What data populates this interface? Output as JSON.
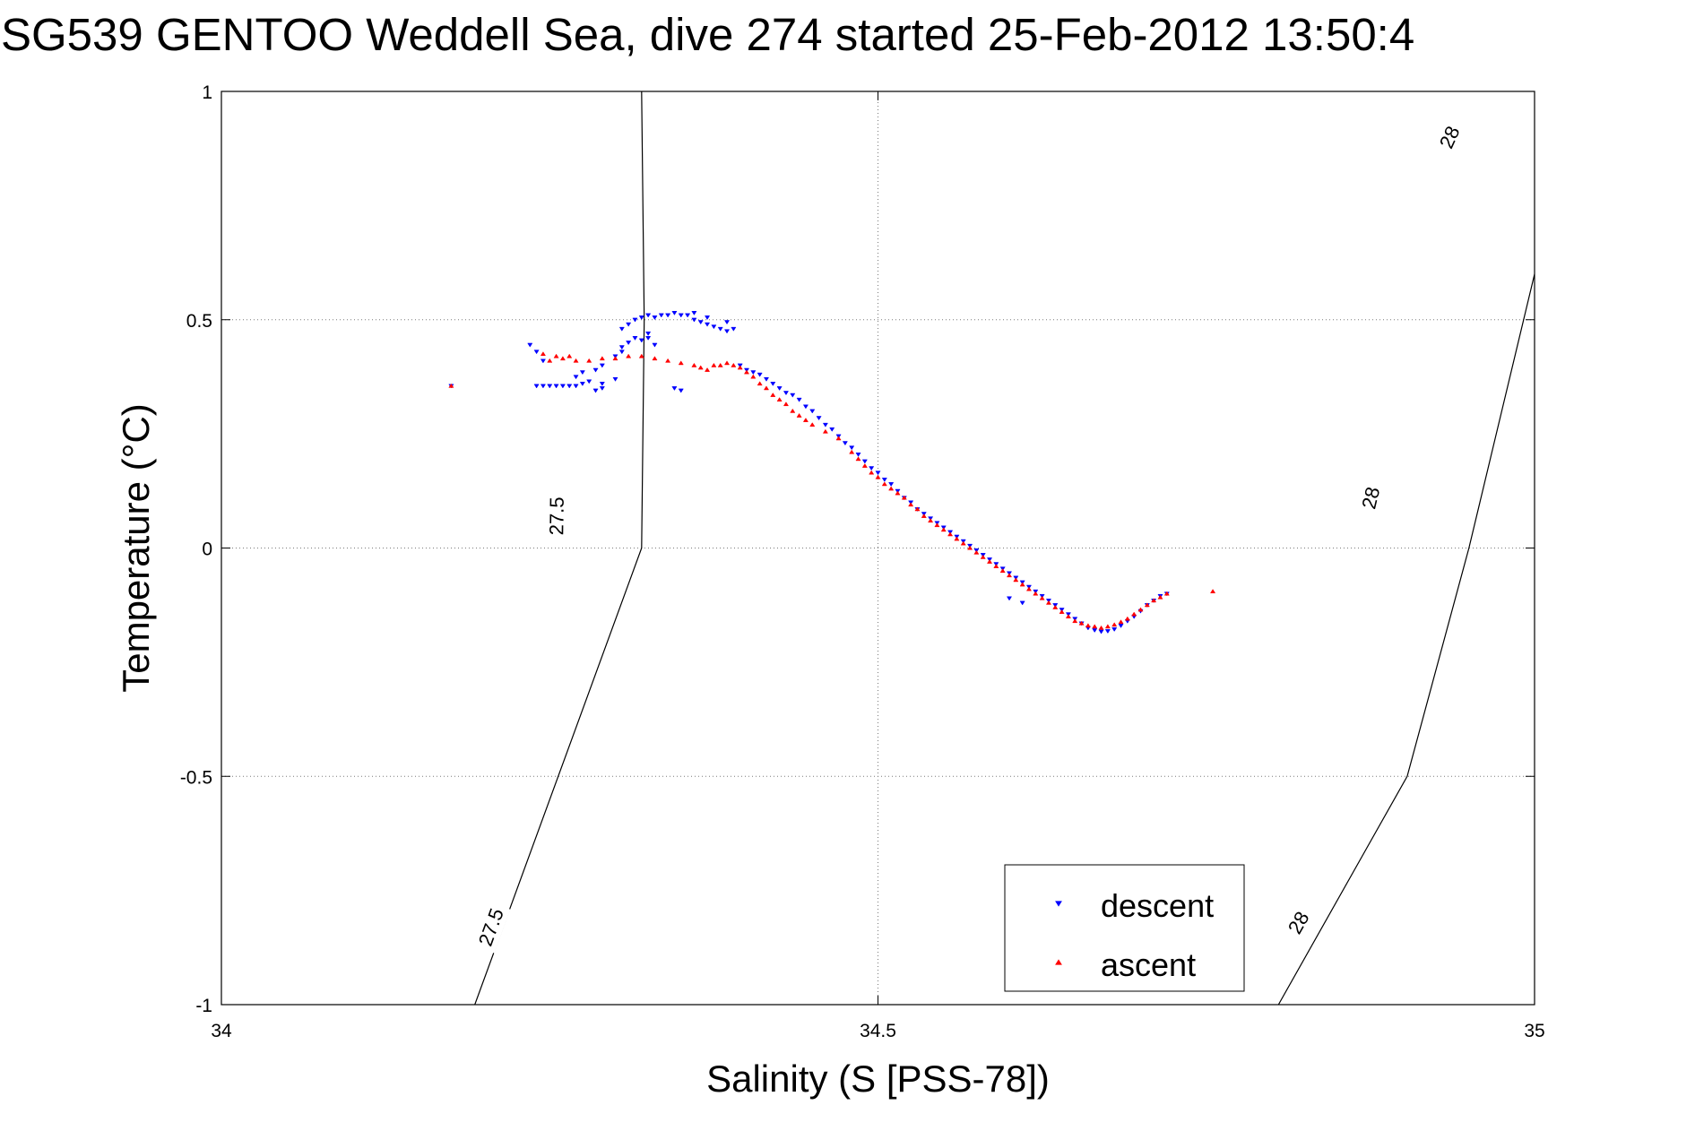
{
  "chart_data": {
    "type": "scatter",
    "title": "SG539 GENTOO Weddell Sea, dive 274 started 25-Feb-2012 13:50:4",
    "xlabel": "Salinity (S [PSS-78])",
    "ylabel": "Temperature (°C)",
    "xlim": [
      34,
      35
    ],
    "ylim": [
      -1,
      1
    ],
    "x_ticks": [
      34,
      34.5,
      35
    ],
    "x_tick_labels": [
      "34",
      "34.5",
      "35"
    ],
    "y_ticks": [
      -1,
      -0.5,
      0,
      0.5,
      1
    ],
    "y_tick_labels": [
      "-1",
      "-0.5",
      "0",
      "0.5",
      "1"
    ],
    "grid": true,
    "legend_position": "bottom-right",
    "series": [
      {
        "name": "descent",
        "color": "#0000ff",
        "marker": "triangle-down",
        "points": [
          [
            34.175,
            0.355
          ],
          [
            34.235,
            0.445
          ],
          [
            34.24,
            0.43
          ],
          [
            34.245,
            0.41
          ],
          [
            34.24,
            0.355
          ],
          [
            34.245,
            0.355
          ],
          [
            34.25,
            0.355
          ],
          [
            34.255,
            0.355
          ],
          [
            34.26,
            0.355
          ],
          [
            34.265,
            0.355
          ],
          [
            34.27,
            0.355
          ],
          [
            34.28,
            0.365
          ],
          [
            34.27,
            0.375
          ],
          [
            34.275,
            0.36
          ],
          [
            34.29,
            0.36
          ],
          [
            34.285,
            0.345
          ],
          [
            34.275,
            0.385
          ],
          [
            34.285,
            0.39
          ],
          [
            34.29,
            0.4
          ],
          [
            34.3,
            0.42
          ],
          [
            34.305,
            0.43
          ],
          [
            34.29,
            0.35
          ],
          [
            34.3,
            0.37
          ],
          [
            34.305,
            0.44
          ],
          [
            34.31,
            0.45
          ],
          [
            34.315,
            0.46
          ],
          [
            34.32,
            0.455
          ],
          [
            34.325,
            0.46
          ],
          [
            34.33,
            0.445
          ],
          [
            34.325,
            0.47
          ],
          [
            34.305,
            0.48
          ],
          [
            34.31,
            0.49
          ],
          [
            34.315,
            0.5
          ],
          [
            34.32,
            0.505
          ],
          [
            34.325,
            0.51
          ],
          [
            34.33,
            0.505
          ],
          [
            34.335,
            0.51
          ],
          [
            34.34,
            0.51
          ],
          [
            34.345,
            0.515
          ],
          [
            34.35,
            0.51
          ],
          [
            34.355,
            0.51
          ],
          [
            34.36,
            0.515
          ],
          [
            34.36,
            0.5
          ],
          [
            34.365,
            0.495
          ],
          [
            34.37,
            0.49
          ],
          [
            34.375,
            0.485
          ],
          [
            34.38,
            0.48
          ],
          [
            34.385,
            0.475
          ],
          [
            34.39,
            0.48
          ],
          [
            34.385,
            0.495
          ],
          [
            34.37,
            0.505
          ],
          [
            34.345,
            0.35
          ],
          [
            34.35,
            0.345
          ],
          [
            34.395,
            0.4
          ],
          [
            34.4,
            0.39
          ],
          [
            34.405,
            0.385
          ],
          [
            34.41,
            0.38
          ],
          [
            34.415,
            0.37
          ],
          [
            34.42,
            0.36
          ],
          [
            34.425,
            0.35
          ],
          [
            34.43,
            0.34
          ],
          [
            34.435,
            0.335
          ],
          [
            34.44,
            0.325
          ],
          [
            34.445,
            0.31
          ],
          [
            34.45,
            0.3
          ],
          [
            34.455,
            0.285
          ],
          [
            34.46,
            0.27
          ],
          [
            34.465,
            0.26
          ],
          [
            34.47,
            0.245
          ],
          [
            34.475,
            0.23
          ],
          [
            34.48,
            0.22
          ],
          [
            34.485,
            0.205
          ],
          [
            34.49,
            0.19
          ],
          [
            34.495,
            0.175
          ],
          [
            34.5,
            0.165
          ],
          [
            34.505,
            0.15
          ],
          [
            34.51,
            0.14
          ],
          [
            34.515,
            0.125
          ],
          [
            34.52,
            0.11
          ],
          [
            34.525,
            0.1
          ],
          [
            34.53,
            0.085
          ],
          [
            34.535,
            0.075
          ],
          [
            34.54,
            0.065
          ],
          [
            34.545,
            0.055
          ],
          [
            34.55,
            0.045
          ],
          [
            34.555,
            0.035
          ],
          [
            34.56,
            0.025
          ],
          [
            34.565,
            0.015
          ],
          [
            34.57,
            0.005
          ],
          [
            34.575,
            -0.005
          ],
          [
            34.58,
            -0.015
          ],
          [
            34.585,
            -0.025
          ],
          [
            34.59,
            -0.035
          ],
          [
            34.595,
            -0.045
          ],
          [
            34.6,
            -0.055
          ],
          [
            34.605,
            -0.065
          ],
          [
            34.61,
            -0.075
          ],
          [
            34.615,
            -0.085
          ],
          [
            34.62,
            -0.095
          ],
          [
            34.625,
            -0.105
          ],
          [
            34.63,
            -0.115
          ],
          [
            34.635,
            -0.125
          ],
          [
            34.64,
            -0.135
          ],
          [
            34.645,
            -0.145
          ],
          [
            34.65,
            -0.155
          ],
          [
            34.655,
            -0.165
          ],
          [
            34.66,
            -0.175
          ],
          [
            34.665,
            -0.18
          ],
          [
            34.67,
            -0.183
          ],
          [
            34.675,
            -0.182
          ],
          [
            34.68,
            -0.178
          ],
          [
            34.685,
            -0.17
          ],
          [
            34.69,
            -0.16
          ],
          [
            34.695,
            -0.15
          ],
          [
            34.7,
            -0.138
          ],
          [
            34.705,
            -0.125
          ],
          [
            34.71,
            -0.115
          ],
          [
            34.715,
            -0.105
          ],
          [
            34.72,
            -0.1
          ],
          [
            34.6,
            -0.11
          ],
          [
            34.61,
            -0.12
          ]
        ]
      },
      {
        "name": "ascent",
        "color": "#ff0000",
        "marker": "triangle-up",
        "points": [
          [
            34.175,
            0.355
          ],
          [
            34.245,
            0.425
          ],
          [
            34.25,
            0.41
          ],
          [
            34.255,
            0.42
          ],
          [
            34.26,
            0.415
          ],
          [
            34.265,
            0.42
          ],
          [
            34.27,
            0.41
          ],
          [
            34.28,
            0.41
          ],
          [
            34.29,
            0.415
          ],
          [
            34.3,
            0.415
          ],
          [
            34.31,
            0.42
          ],
          [
            34.32,
            0.42
          ],
          [
            34.33,
            0.415
          ],
          [
            34.34,
            0.41
          ],
          [
            34.35,
            0.405
          ],
          [
            34.36,
            0.4
          ],
          [
            34.365,
            0.395
          ],
          [
            34.37,
            0.39
          ],
          [
            34.375,
            0.4
          ],
          [
            34.38,
            0.4
          ],
          [
            34.385,
            0.405
          ],
          [
            34.39,
            0.4
          ],
          [
            34.395,
            0.395
          ],
          [
            34.4,
            0.385
          ],
          [
            34.405,
            0.375
          ],
          [
            34.41,
            0.36
          ],
          [
            34.415,
            0.35
          ],
          [
            34.42,
            0.335
          ],
          [
            34.425,
            0.325
          ],
          [
            34.43,
            0.315
          ],
          [
            34.435,
            0.3
          ],
          [
            34.44,
            0.29
          ],
          [
            34.445,
            0.28
          ],
          [
            34.45,
            0.27
          ],
          [
            34.46,
            0.255
          ],
          [
            34.47,
            0.24
          ],
          [
            34.48,
            0.21
          ],
          [
            34.485,
            0.195
          ],
          [
            34.49,
            0.18
          ],
          [
            34.495,
            0.165
          ],
          [
            34.5,
            0.155
          ],
          [
            34.505,
            0.14
          ],
          [
            34.51,
            0.13
          ],
          [
            34.515,
            0.12
          ],
          [
            34.52,
            0.11
          ],
          [
            34.525,
            0.095
          ],
          [
            34.53,
            0.085
          ],
          [
            34.535,
            0.07
          ],
          [
            34.54,
            0.06
          ],
          [
            34.545,
            0.05
          ],
          [
            34.55,
            0.04
          ],
          [
            34.555,
            0.03
          ],
          [
            34.56,
            0.02
          ],
          [
            34.565,
            0.01
          ],
          [
            34.57,
            0.0
          ],
          [
            34.575,
            -0.01
          ],
          [
            34.58,
            -0.02
          ],
          [
            34.585,
            -0.03
          ],
          [
            34.59,
            -0.04
          ],
          [
            34.595,
            -0.05
          ],
          [
            34.6,
            -0.06
          ],
          [
            34.605,
            -0.07
          ],
          [
            34.61,
            -0.08
          ],
          [
            34.615,
            -0.09
          ],
          [
            34.62,
            -0.1
          ],
          [
            34.625,
            -0.11
          ],
          [
            34.63,
            -0.12
          ],
          [
            34.635,
            -0.13
          ],
          [
            34.64,
            -0.14
          ],
          [
            34.645,
            -0.15
          ],
          [
            34.65,
            -0.16
          ],
          [
            34.655,
            -0.165
          ],
          [
            34.66,
            -0.17
          ],
          [
            34.665,
            -0.172
          ],
          [
            34.67,
            -0.175
          ],
          [
            34.675,
            -0.172
          ],
          [
            34.68,
            -0.168
          ],
          [
            34.685,
            -0.162
          ],
          [
            34.69,
            -0.155
          ],
          [
            34.695,
            -0.145
          ],
          [
            34.7,
            -0.135
          ],
          [
            34.705,
            -0.125
          ],
          [
            34.71,
            -0.115
          ],
          [
            34.715,
            -0.108
          ],
          [
            34.72,
            -0.1
          ],
          [
            34.755,
            -0.095
          ]
        ]
      }
    ],
    "isopycnals": [
      {
        "label": "27.5",
        "points": [
          [
            34.193,
            -1.0
          ],
          [
            34.32,
            0.0
          ],
          [
            34.322,
            0.5
          ],
          [
            34.32,
            1.0
          ]
        ],
        "label_positions": [
          [
            34.205,
            -0.83
          ],
          [
            34.255,
            0.07
          ]
        ]
      },
      {
        "label": "28",
        "points": [
          [
            34.805,
            -1.0
          ],
          [
            34.903,
            -0.5
          ],
          [
            34.95,
            0.0
          ],
          [
            35.0,
            0.6
          ],
          [
            35.063,
            1.0
          ]
        ],
        "label_positions": [
          [
            34.82,
            -0.82
          ],
          [
            34.875,
            0.11
          ],
          [
            34.935,
            0.9
          ]
        ]
      }
    ],
    "legend": {
      "entries": [
        "descent",
        "ascent"
      ]
    }
  }
}
